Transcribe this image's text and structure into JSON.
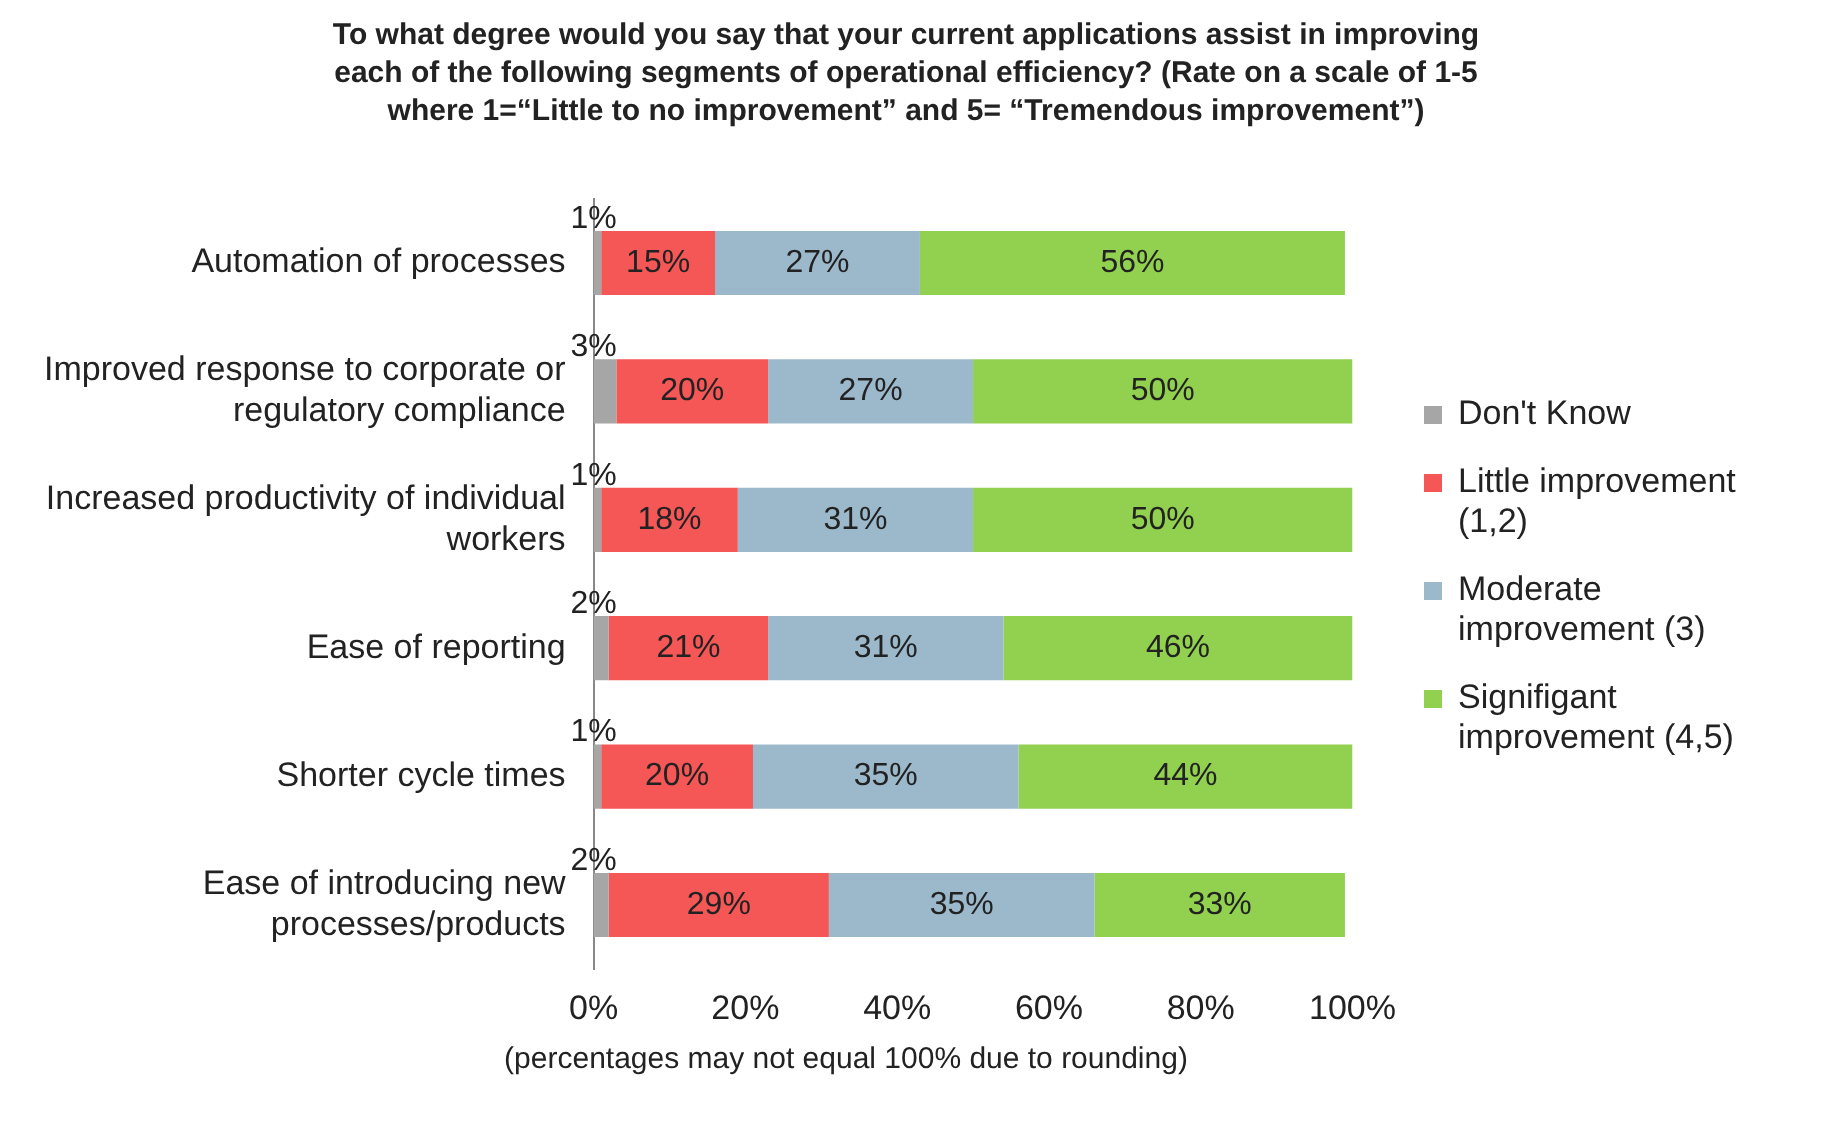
{
  "chart_data": {
    "type": "bar",
    "orientation": "horizontal",
    "stacked": true,
    "title": "To what degree would you say that your current applications assist in improving each of the following segments of operational efficiency? (Rate on a scale of 1-5 where 1=“Little to no improvement” and 5= “Tremendous improvement”)",
    "categories": [
      "Automation of processes",
      "Improved response to corporate or regulatory compliance",
      "Increased productivity of individual workers",
      "Ease of reporting",
      "Shorter cycle times",
      "Ease of introducing new processes/products"
    ],
    "series": [
      {
        "name": "Don't Know",
        "color": "#a6a6a6",
        "values": [
          1,
          3,
          1,
          2,
          1,
          2
        ],
        "value_labels": [
          "1%",
          "3%",
          "1%",
          "2%",
          "1%",
          "2%"
        ]
      },
      {
        "name": "Little improvement (1,2)",
        "color": "#f55656",
        "values": [
          15,
          20,
          18,
          21,
          20,
          29
        ],
        "value_labels": [
          "15%",
          "20%",
          "18%",
          "21%",
          "20%",
          "29%"
        ]
      },
      {
        "name": "Moderate improvement (3)",
        "color": "#9cb9cb",
        "values": [
          27,
          27,
          31,
          31,
          35,
          35
        ],
        "value_labels": [
          "27%",
          "27%",
          "31%",
          "31%",
          "35%",
          "35%"
        ]
      },
      {
        "name": "Signifigant improvement (4,5)",
        "color": "#92d050",
        "values": [
          56,
          50,
          50,
          46,
          44,
          33
        ],
        "value_labels": [
          "56%",
          "50%",
          "50%",
          "46%",
          "44%",
          "33%"
        ]
      }
    ],
    "xlim": [
      0,
      100
    ],
    "xticks": [
      {
        "value": 0,
        "label": "0%"
      },
      {
        "value": 20,
        "label": "20%"
      },
      {
        "value": 40,
        "label": "40%"
      },
      {
        "value": 60,
        "label": "60%"
      },
      {
        "value": 80,
        "label": "80%"
      },
      {
        "value": 100,
        "label": "100%"
      }
    ],
    "grid": false,
    "legend": "right",
    "annotations": [
      "(percentages may not equal 100% due to rounding)"
    ]
  }
}
